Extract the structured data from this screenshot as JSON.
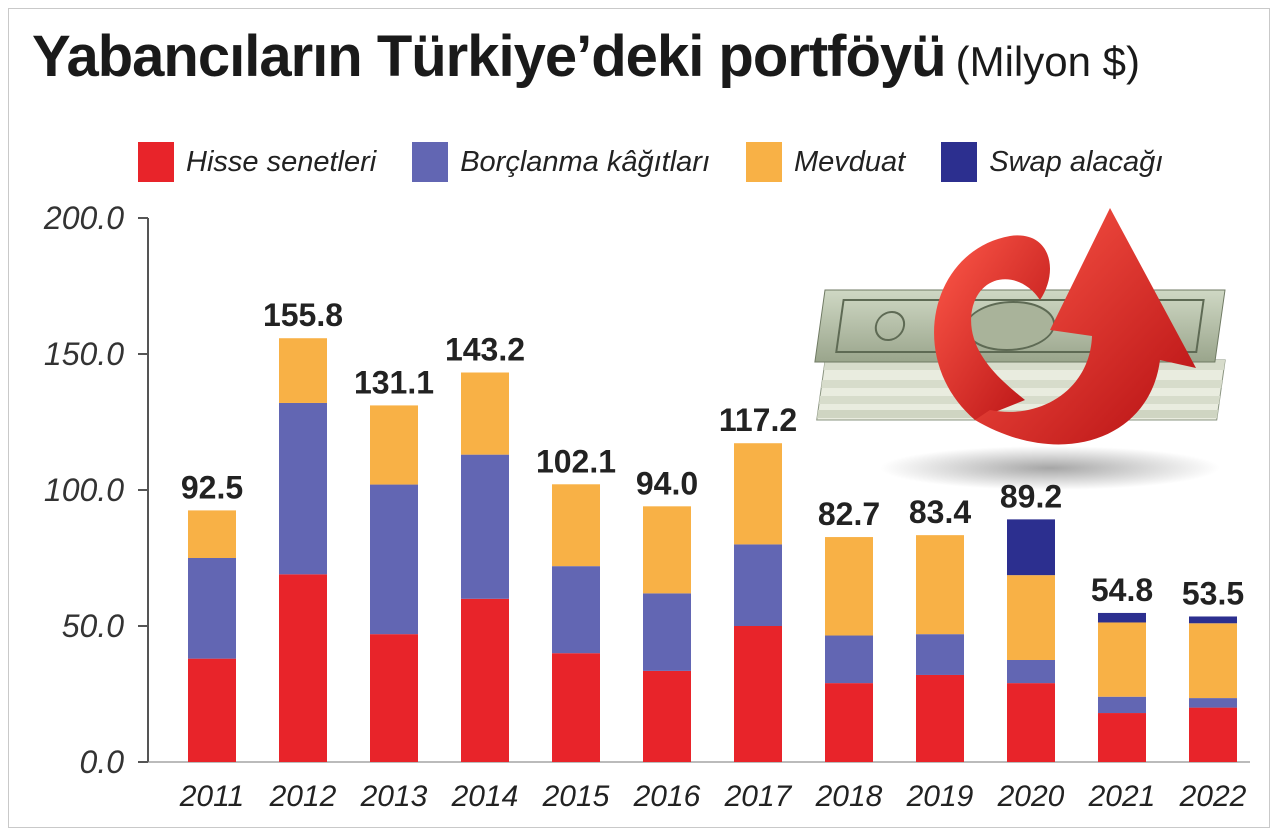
{
  "header": {
    "title": "Yabancıların Türkiye’deki portföyü",
    "unit": "(Milyon $)"
  },
  "legend": [
    {
      "label": "Hisse senetleri",
      "color": "#e8242a"
    },
    {
      "label": "Borçlanma kâğıtları",
      "color": "#6266b3"
    },
    {
      "label": "Mevduat",
      "color": "#f8b146"
    },
    {
      "label": "Swap alacağı",
      "color": "#2c2f8f"
    }
  ],
  "illustration": {
    "icon": "money-stack-with-red-arrow-icon"
  },
  "chart_data": {
    "type": "bar",
    "stacked": true,
    "categories": [
      "2011",
      "2012",
      "2013",
      "2014",
      "2015",
      "2016",
      "2017",
      "2018",
      "2019",
      "2020",
      "2021",
      "2022"
    ],
    "series": [
      {
        "name": "Hisse senetleri",
        "color": "#e8242a",
        "values": [
          38,
          69,
          47,
          60,
          40,
          33.5,
          50,
          29,
          32,
          29,
          18,
          20
        ]
      },
      {
        "name": "Borçlanma kâğıtları",
        "color": "#6266b3",
        "values": [
          37,
          63,
          55,
          53,
          32,
          28.5,
          30,
          17.5,
          15,
          8.5,
          6,
          3.5
        ]
      },
      {
        "name": "Mevduat",
        "color": "#f8b146",
        "values": [
          17.5,
          23.8,
          29.1,
          30.2,
          30.1,
          32,
          37.2,
          36.2,
          36.4,
          31.2,
          27.3,
          27.5
        ]
      },
      {
        "name": "Swap alacağı",
        "color": "#2c2f8f",
        "values": [
          0,
          0,
          0,
          0,
          0,
          0,
          0,
          0,
          0,
          20.5,
          3.5,
          2.5
        ]
      }
    ],
    "totals": [
      "92.5",
      "155.8",
      "131.1",
      "143.2",
      "102.1",
      "94.0",
      "117.2",
      "82.7",
      "83.4",
      "89.2",
      "54.8",
      "53.5"
    ],
    "y_ticks": [
      "0.0",
      "50.0",
      "100.0",
      "150.0",
      "200.0"
    ],
    "ylim": [
      0,
      200
    ],
    "grid": false,
    "legend_position": "top"
  }
}
